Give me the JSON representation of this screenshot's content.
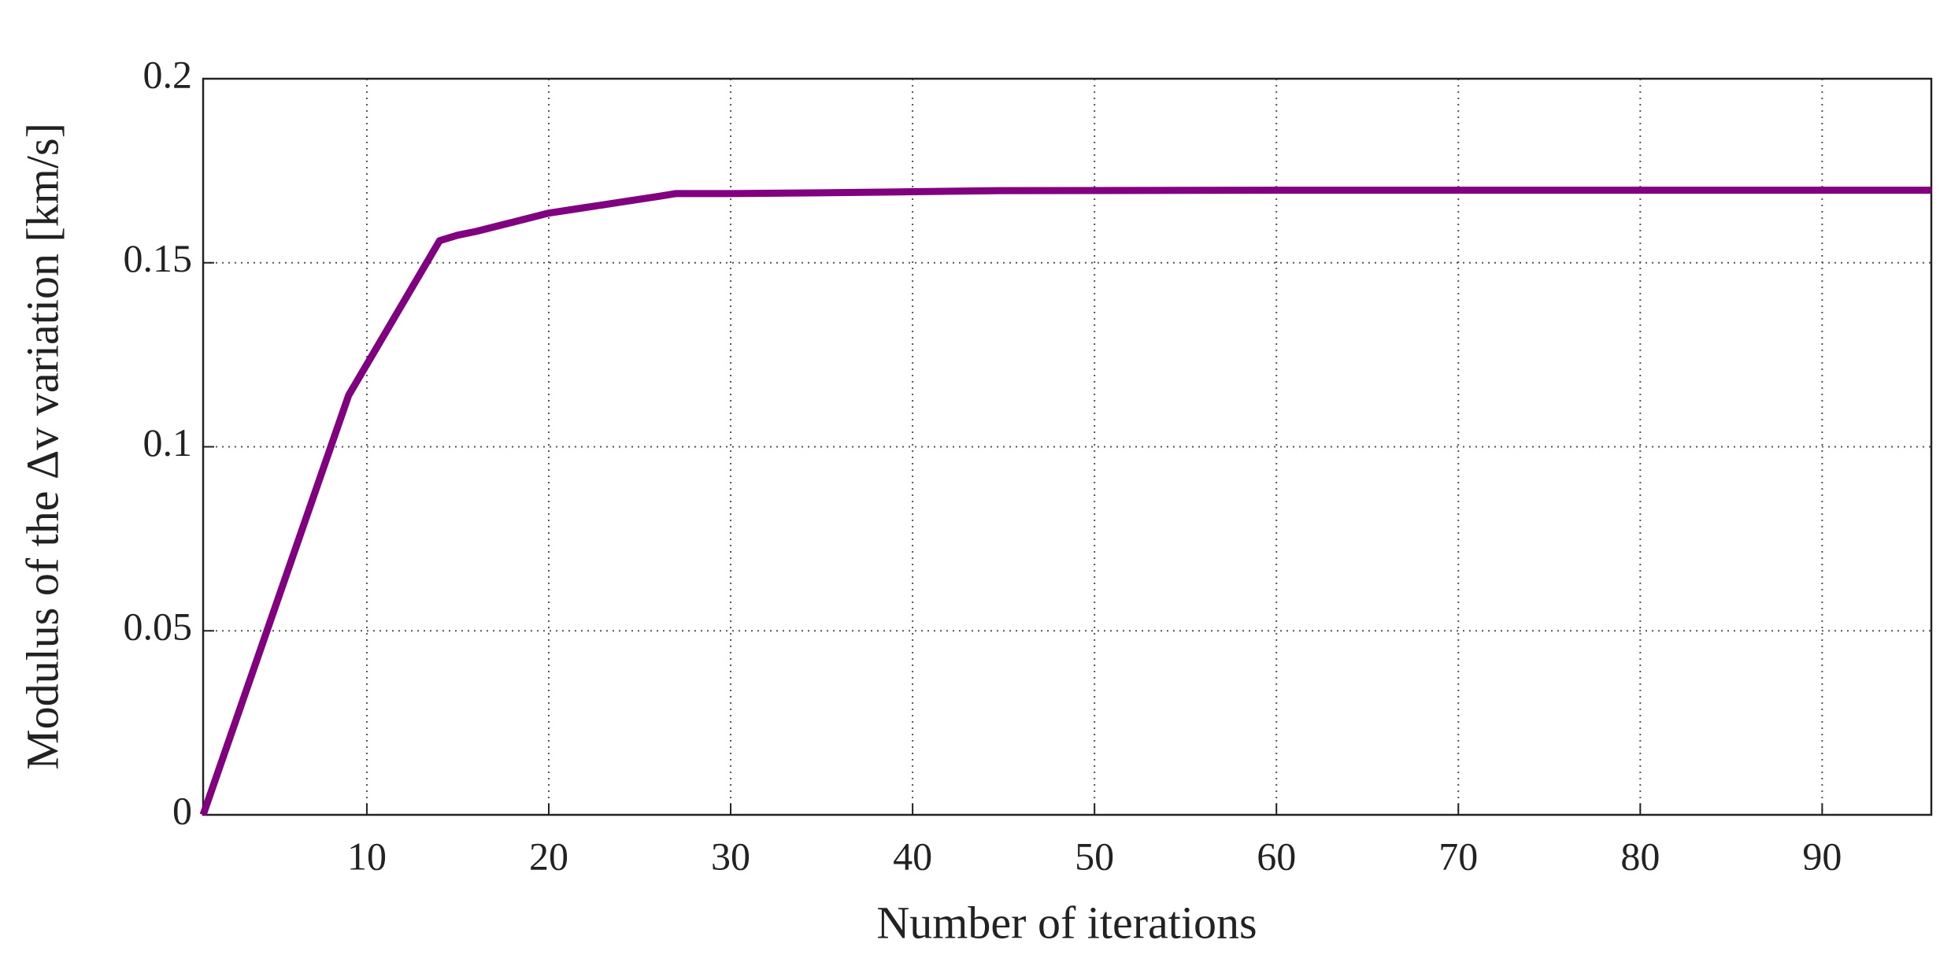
{
  "chart_data": {
    "type": "line",
    "xlabel": "Number of iterations",
    "ylabel": "Modulus of the Δv variation [km/s]",
    "x": [
      1,
      9,
      14,
      15,
      16,
      18,
      20,
      22,
      24,
      26,
      27,
      30,
      35,
      40,
      45,
      60,
      80,
      96
    ],
    "series": [
      {
        "name": "Δv",
        "color": "#800080",
        "values": [
          0,
          0.114,
          0.156,
          0.1575,
          0.1585,
          0.161,
          0.1635,
          0.165,
          0.1665,
          0.168,
          0.1688,
          0.1688,
          0.169,
          0.1693,
          0.1696,
          0.1697,
          0.1697,
          0.1697
        ]
      }
    ],
    "xlim": [
      1,
      96
    ],
    "xticks": [
      10,
      20,
      30,
      40,
      50,
      60,
      70,
      80,
      90
    ],
    "ylim": [
      0,
      0.2
    ],
    "yticks": [
      0,
      0.05,
      0.1,
      0.15,
      0.2
    ],
    "grid": true
  }
}
